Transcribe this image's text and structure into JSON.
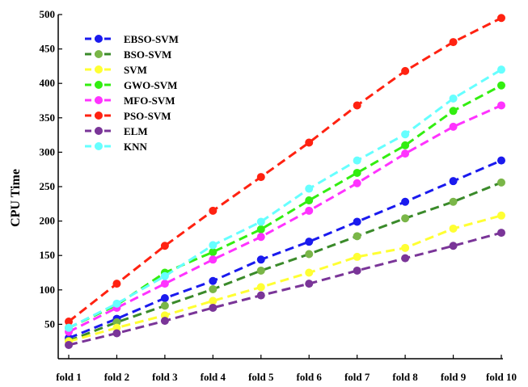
{
  "chart_data": {
    "type": "line",
    "title": "",
    "xlabel": "",
    "ylabel": "CPU Time",
    "ylim": [
      0,
      500
    ],
    "yticks": [
      50,
      100,
      150,
      200,
      250,
      300,
      350,
      400,
      450,
      500
    ],
    "categories": [
      "fold 1",
      "fold 2",
      "fold 3",
      "fold 4",
      "fold 5",
      "fold 6",
      "fold 7",
      "fold 8",
      "fold 9",
      "fold 10"
    ],
    "grid": false,
    "legend_position": "top-left",
    "series": [
      {
        "name": "EBSO-SVM",
        "color": "#1a1aee",
        "values": [
          30,
          58,
          88,
          113,
          144,
          170,
          199,
          228,
          258,
          288
        ]
      },
      {
        "name": "BSO-SVM",
        "color": "#3a8a2a",
        "marker_color": "#7ab648",
        "values": [
          26,
          53,
          77,
          101,
          128,
          152,
          178,
          204,
          228,
          256
        ]
      },
      {
        "name": "SVM",
        "color": "#ffff33",
        "values": [
          25,
          45,
          63,
          84,
          104,
          125,
          148,
          161,
          189,
          208
        ]
      },
      {
        "name": "GWO-SVM",
        "color": "#33ee11",
        "values": [
          45,
          78,
          125,
          155,
          188,
          230,
          270,
          310,
          360,
          397
        ]
      },
      {
        "name": "MFO-SVM",
        "color": "#ff33ff",
        "values": [
          39,
          74,
          109,
          144,
          177,
          215,
          255,
          298,
          337,
          368
        ]
      },
      {
        "name": "PSO-SVM",
        "color": "#ff2211",
        "values": [
          54,
          109,
          164,
          215,
          264,
          314,
          368,
          418,
          460,
          495
        ]
      },
      {
        "name": "ELM",
        "color": "#7a3598",
        "values": [
          20,
          37,
          55,
          74,
          92,
          109,
          128,
          146,
          164,
          183
        ]
      },
      {
        "name": "KNN",
        "color": "#66ffff",
        "values": [
          45,
          80,
          120,
          165,
          199,
          247,
          288,
          326,
          378,
          420
        ]
      }
    ]
  }
}
